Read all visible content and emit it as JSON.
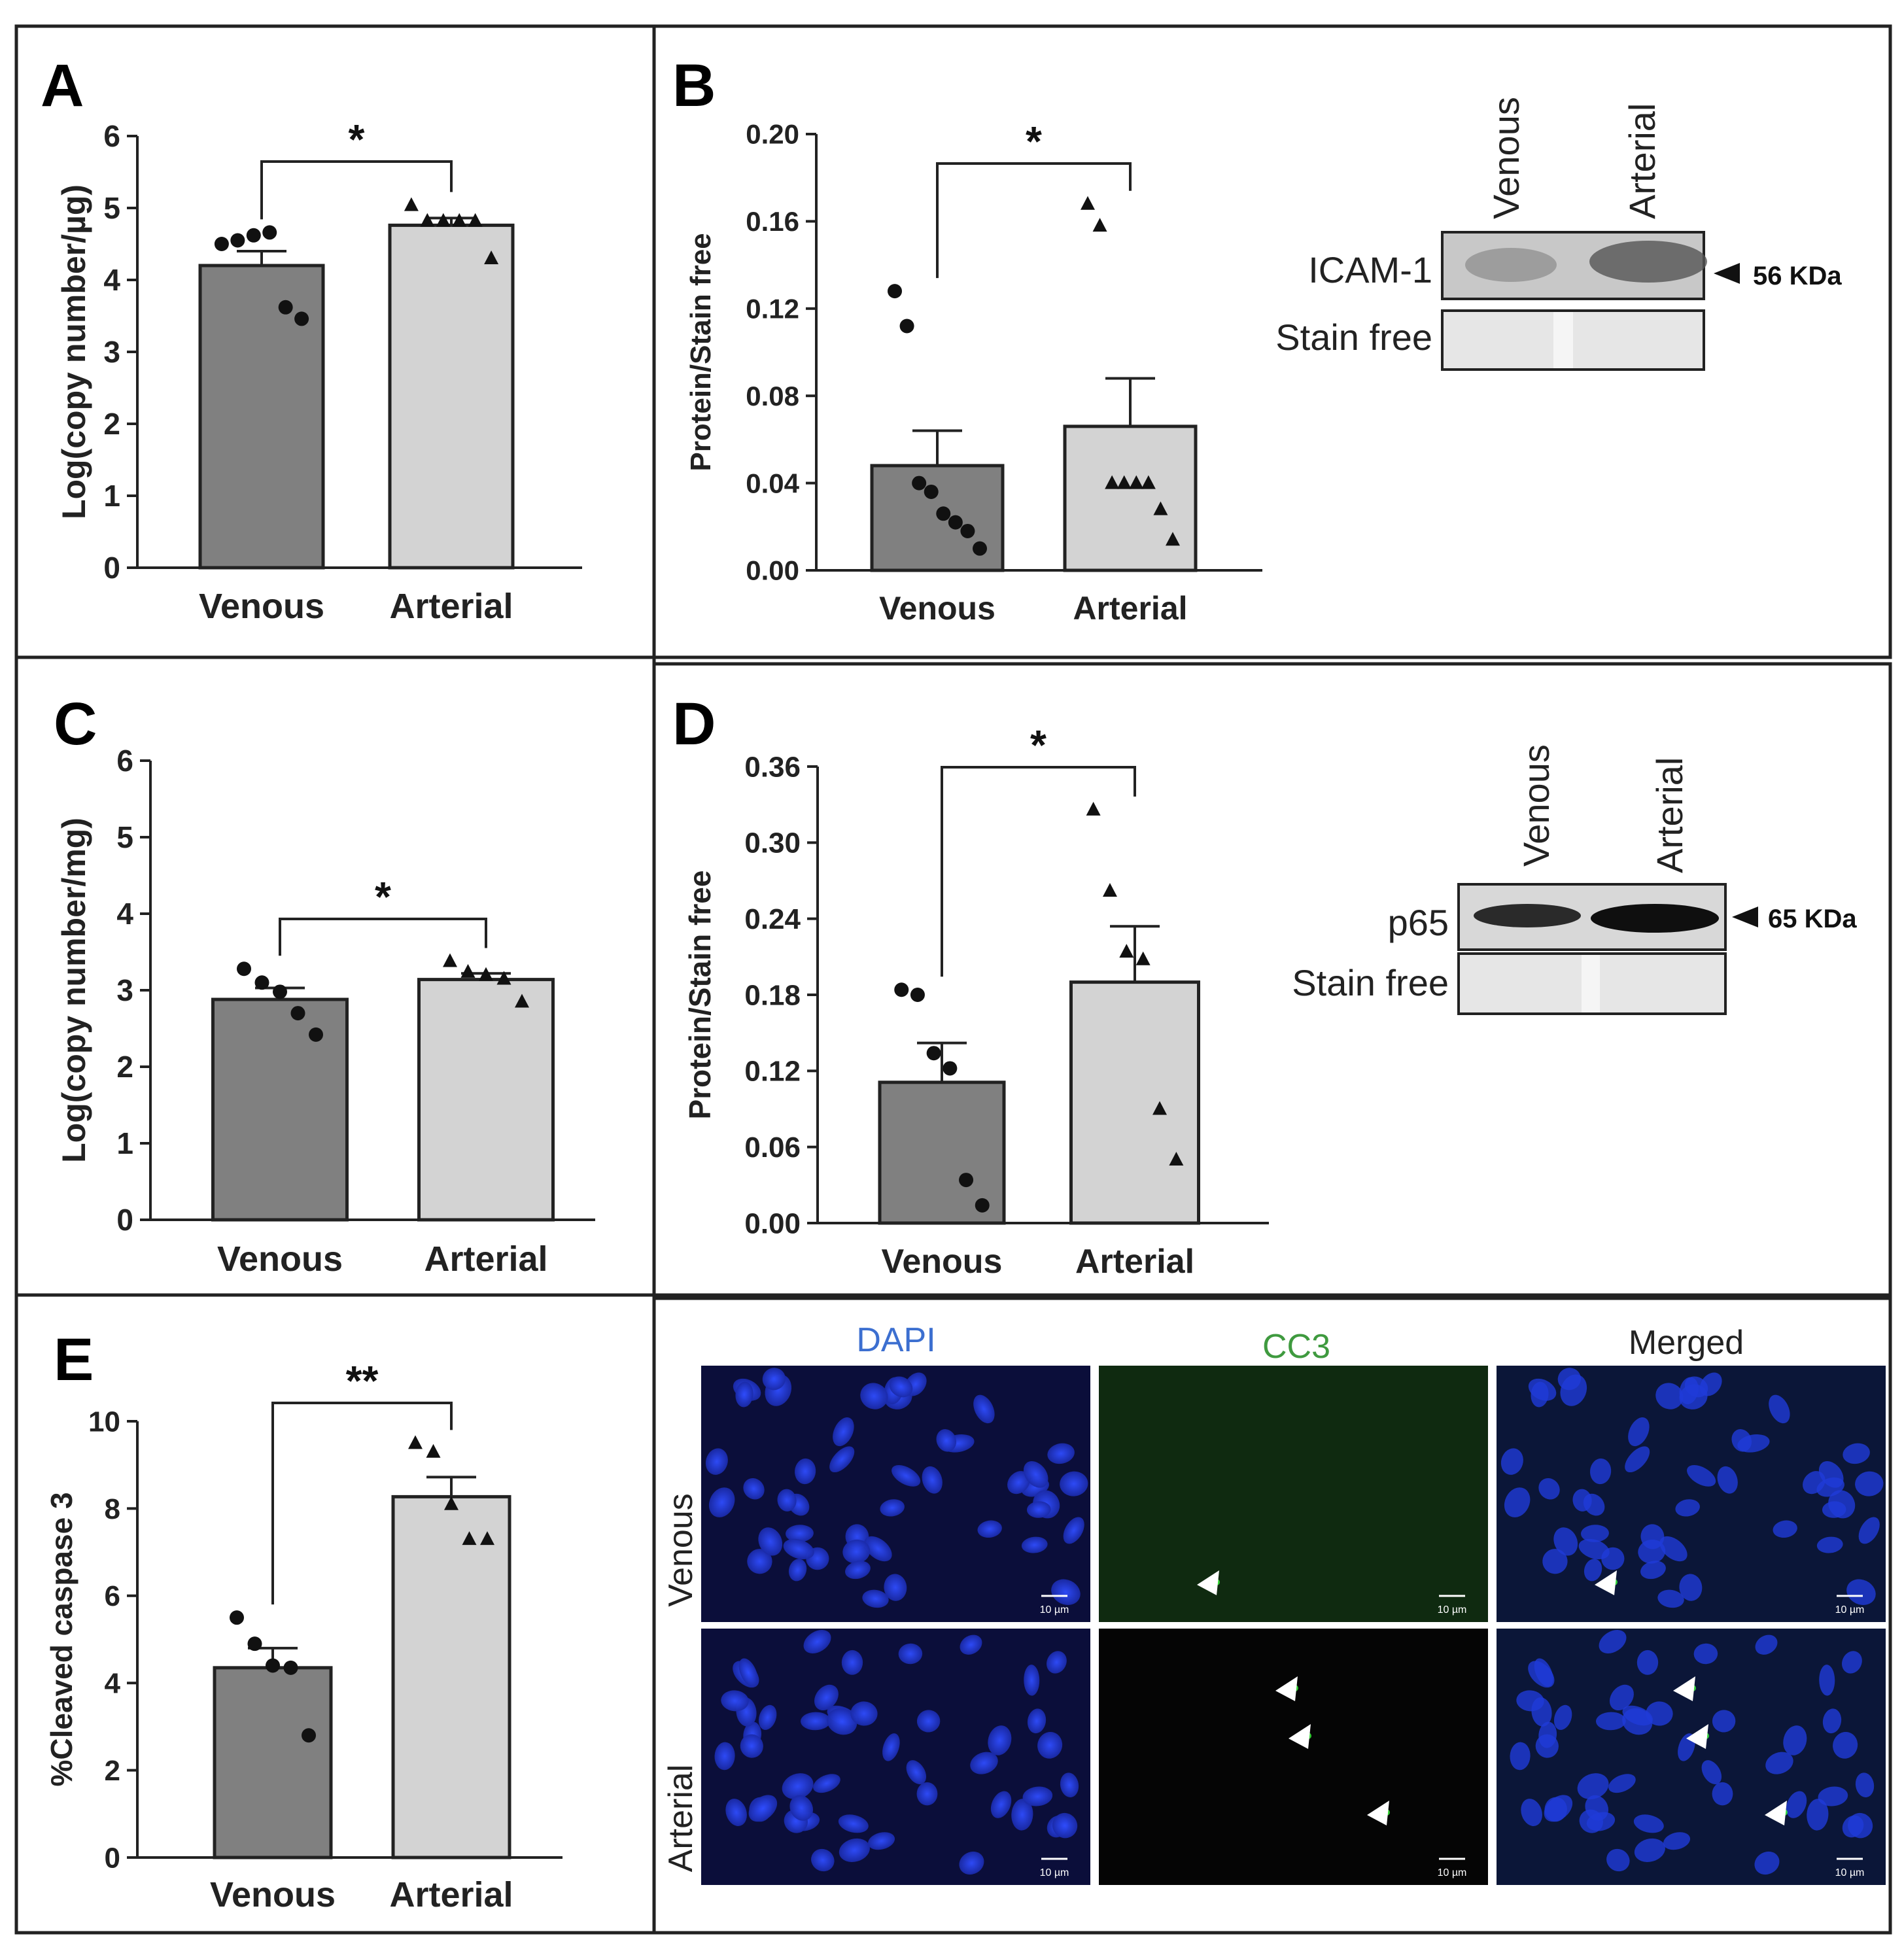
{
  "panel_labels": [
    "A",
    "B",
    "C",
    "D",
    "E"
  ],
  "chart_data": [
    {
      "id": "A",
      "type": "bar",
      "categories": [
        "Venous",
        "Arterial"
      ],
      "values": [
        4.2,
        4.76
      ],
      "errors": [
        0.2,
        0.1
      ],
      "points": [
        [
          4.5,
          4.55,
          4.62,
          4.66,
          3.62,
          3.46
        ],
        [
          5.04,
          4.82,
          4.82,
          4.82,
          4.82,
          4.3
        ]
      ],
      "ylabel": "Log(copy number/µg)",
      "ylim": [
        0,
        6
      ],
      "yticks": [
        "0",
        "1",
        "2",
        "3",
        "4",
        "5",
        "6"
      ],
      "significance": "*"
    },
    {
      "id": "B",
      "type": "bar",
      "categories": [
        "Venous",
        "Arterial"
      ],
      "values": [
        0.048,
        0.066
      ],
      "errors": [
        0.016,
        0.022
      ],
      "points": [
        [
          0.128,
          0.112,
          0.04,
          0.036,
          0.026,
          0.022,
          0.018,
          0.01
        ],
        [
          0.168,
          0.158,
          0.04,
          0.04,
          0.04,
          0.04,
          0.028,
          0.014
        ]
      ],
      "ylabel": "Protein/Stain free",
      "ylim": [
        0,
        0.2
      ],
      "yticks": [
        "0.00",
        "0.04",
        "0.08",
        "0.12",
        "0.16",
        "0.20"
      ],
      "significance": "*"
    },
    {
      "id": "C",
      "type": "bar",
      "categories": [
        "Venous",
        "Arterial"
      ],
      "values": [
        2.88,
        3.14
      ],
      "errors": [
        0.15,
        0.08
      ],
      "points": [
        [
          3.28,
          3.1,
          2.98,
          2.7,
          2.42
        ],
        [
          3.38,
          3.24,
          3.2,
          3.15,
          2.85
        ]
      ],
      "ylabel": "Log(copy number/mg)",
      "ylim": [
        0,
        6
      ],
      "yticks": [
        "0",
        "1",
        "2",
        "3",
        "4",
        "5",
        "6"
      ],
      "significance": "*"
    },
    {
      "id": "D",
      "type": "bar",
      "categories": [
        "Venous",
        "Arterial"
      ],
      "values": [
        0.111,
        0.19
      ],
      "errors": [
        0.031,
        0.044
      ],
      "points": [
        [
          0.184,
          0.18,
          0.134,
          0.122,
          0.034,
          0.014
        ],
        [
          0.326,
          0.262,
          0.214,
          0.208,
          0.09,
          0.05
        ]
      ],
      "ylabel": "Protein/Stain free",
      "ylim": [
        0,
        0.36
      ],
      "yticks": [
        "0.00",
        "0.06",
        "0.12",
        "0.18",
        "0.24",
        "0.30",
        "0.36"
      ],
      "significance": "*"
    },
    {
      "id": "E",
      "type": "bar",
      "categories": [
        "Venous",
        "Arterial"
      ],
      "values": [
        4.35,
        8.27
      ],
      "errors": [
        0.45,
        0.45
      ],
      "points": [
        [
          5.5,
          4.9,
          4.4,
          4.35,
          2.8
        ],
        [
          9.5,
          9.3,
          8.1,
          7.3,
          7.3
        ]
      ],
      "ylabel": "%Cleaved caspase 3",
      "ylim": [
        0,
        10
      ],
      "yticks": [
        "0",
        "2",
        "4",
        "6",
        "8",
        "10"
      ],
      "significance": "**"
    }
  ],
  "blots": [
    {
      "lanes": [
        "Venous",
        "Arterial"
      ],
      "bands": [
        {
          "label": "ICAM-1",
          "size": "56 KDa"
        },
        {
          "label": "Stain free",
          "size": ""
        }
      ]
    },
    {
      "lanes": [
        "Venous",
        "Arterial"
      ],
      "bands": [
        {
          "label": "p65",
          "size": "65 KDa"
        },
        {
          "label": "Stain free",
          "size": ""
        }
      ]
    }
  ],
  "micrographs": {
    "channels": [
      "DAPI",
      "CC3",
      "Merged"
    ],
    "rows": [
      "Venous",
      "Arterial"
    ],
    "scale_bar": "10 µm",
    "colors": {
      "dapi": "#3c6fd0",
      "cc3": "#3f9a3f",
      "merged": "#222222"
    }
  },
  "colors": {
    "venous_bar": "#808080",
    "arterial_bar": "#d3d3d3"
  }
}
